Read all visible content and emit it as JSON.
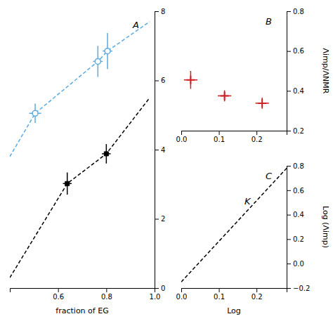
{
  "chart_data": [
    {
      "type": "line",
      "title": "A",
      "x_label": "fraction of EG",
      "xlim": [
        0.4,
        1.0
      ],
      "ylim": [
        0,
        8
      ],
      "xticks": [
        0.6,
        0.8,
        {
          "value": 1.0,
          "label": "1.0"
        }
      ],
      "yticks": [
        0,
        2,
        4,
        6,
        8
      ],
      "series": [
        {
          "type": "line",
          "color": "#5aabe0",
          "line_style": "dashed",
          "x": [
            0.4,
            0.505,
            0.765,
            0.805,
            0.98
          ],
          "values": [
            3.8,
            5.05,
            6.55,
            6.85,
            7.7
          ]
        },
        {
          "type": "line",
          "color": "black",
          "line_style": "dashed",
          "x": [
            0.4,
            0.638,
            0.8,
            0.98
          ],
          "values": [
            0.3,
            3.02,
            3.88,
            5.5
          ]
        },
        {
          "type": "scatter",
          "color": "#5aabe0",
          "marker": "open-circle",
          "x": [
            0.505,
            0.765,
            0.805
          ],
          "values": [
            5.05,
            6.55,
            6.85
          ],
          "x_error": [
            0.025,
            0.02,
            0.02
          ],
          "y_error": [
            0.28,
            0.45,
            0.52
          ]
        },
        {
          "type": "scatter",
          "color": "black",
          "marker": "square",
          "x": [
            0.638,
            0.8
          ],
          "values": [
            3.02,
            3.88
          ],
          "x_error": [
            0.018,
            0.018
          ],
          "y_error": [
            0.32,
            0.28
          ]
        }
      ]
    },
    {
      "type": "scatter",
      "title": "B",
      "y_label": "Λimp/ΛNMR",
      "xlim": [
        0.0,
        0.28
      ],
      "ylim": [
        0.2,
        0.8
      ],
      "xticks": [
        {
          "value": 0.0,
          "label": "0.0"
        },
        0.1,
        0.2
      ],
      "yticks": [
        0.2,
        0.4,
        0.6,
        0.8
      ],
      "series": [
        {
          "type": "scatter",
          "color": "#cc2222",
          "marker": "plus",
          "x": [
            0.025,
            0.115,
            0.215
          ],
          "values": [
            0.455,
            0.375,
            0.338
          ],
          "x_error": [
            0.018,
            0.018,
            0.018
          ],
          "y_error": [
            0.045,
            0.028,
            0.028
          ]
        }
      ]
    },
    {
      "type": "line",
      "title": "C",
      "x_label": "Log",
      "y_label": "Log (Λimp)",
      "annotation": "K",
      "xlim": [
        0.0,
        0.28
      ],
      "ylim": [
        -0.2,
        0.8
      ],
      "xticks": [
        {
          "value": 0.0,
          "label": "0.0"
        },
        0.1,
        0.2
      ],
      "yticks": [
        {
          "value": -0.2,
          "label": "−0.2"
        },
        {
          "value": 0.0,
          "label": "0.0"
        },
        0.2,
        0.4,
        0.6,
        0.8
      ],
      "series": [
        {
          "type": "line",
          "color": "black",
          "line_style": "dashed",
          "x": [
            0.0,
            0.28
          ],
          "values": [
            -0.15,
            0.78
          ]
        }
      ]
    }
  ]
}
